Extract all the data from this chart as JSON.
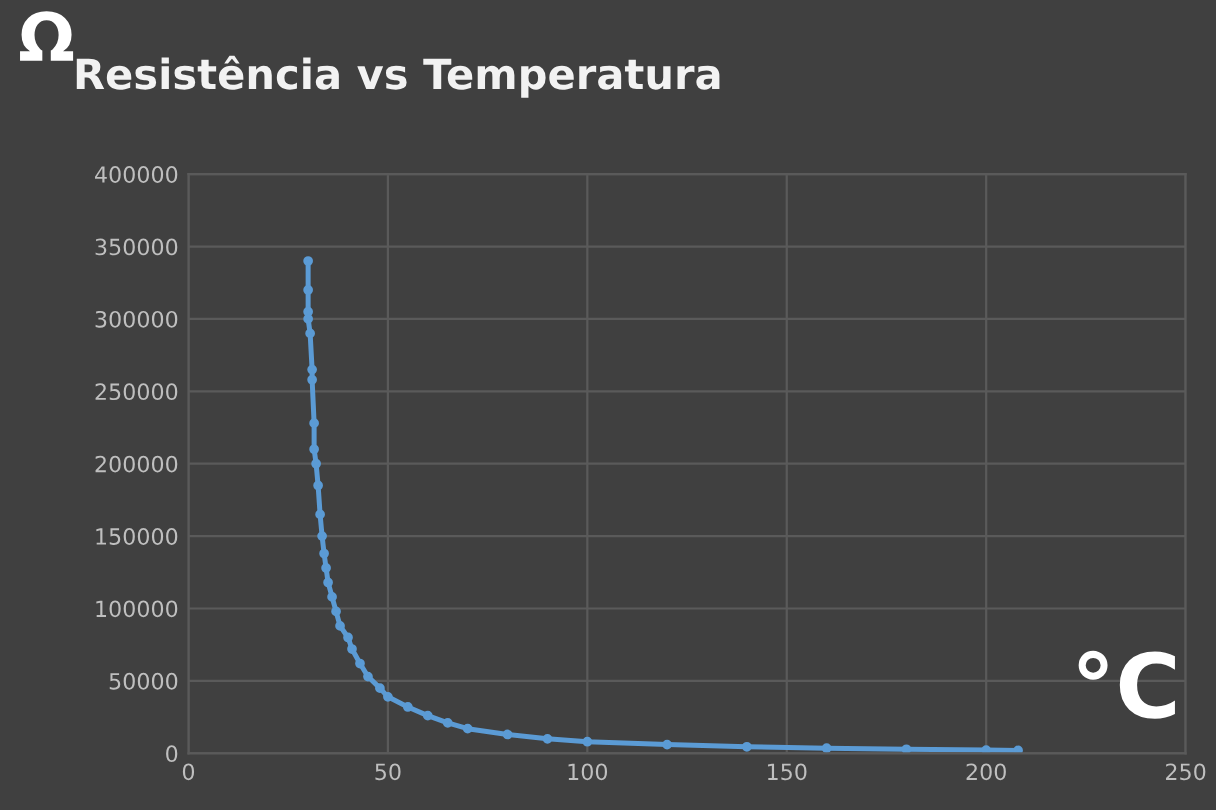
{
  "chart_data": {
    "type": "line",
    "title": "Resistência vs Temperatura",
    "xlabel": "°C",
    "ylabel": "Ω",
    "xlim": [
      0,
      250
    ],
    "xticks": [
      0,
      50,
      100,
      150,
      200,
      250
    ],
    "ylim": [
      0,
      400000
    ],
    "yticks": [
      0,
      50000,
      100000,
      150000,
      200000,
      250000,
      300000,
      350000,
      400000
    ],
    "grid": true,
    "marker": "circle",
    "line_style": "solid",
    "series": [
      {
        "color": "#5b9bd5",
        "x": [
          30,
          30,
          30,
          30,
          30.5,
          31,
          31,
          31.5,
          31.5,
          32,
          32.5,
          33,
          33.5,
          34,
          34.5,
          35,
          36,
          37,
          38,
          40,
          41,
          43,
          45,
          48,
          50,
          55,
          60,
          65,
          70,
          80,
          90,
          100,
          120,
          140,
          160,
          180,
          200,
          208
        ],
        "values": [
          340000,
          320000,
          305000,
          300000,
          290000,
          265000,
          258000,
          228000,
          210000,
          200000,
          185000,
          165000,
          150000,
          138000,
          128000,
          118000,
          108000,
          98000,
          88000,
          80000,
          72000,
          62000,
          53000,
          45000,
          39000,
          32000,
          26000,
          21000,
          17000,
          13000,
          10000,
          8000,
          6000,
          4500,
          3500,
          2800,
          2200,
          2000
        ]
      }
    ]
  }
}
